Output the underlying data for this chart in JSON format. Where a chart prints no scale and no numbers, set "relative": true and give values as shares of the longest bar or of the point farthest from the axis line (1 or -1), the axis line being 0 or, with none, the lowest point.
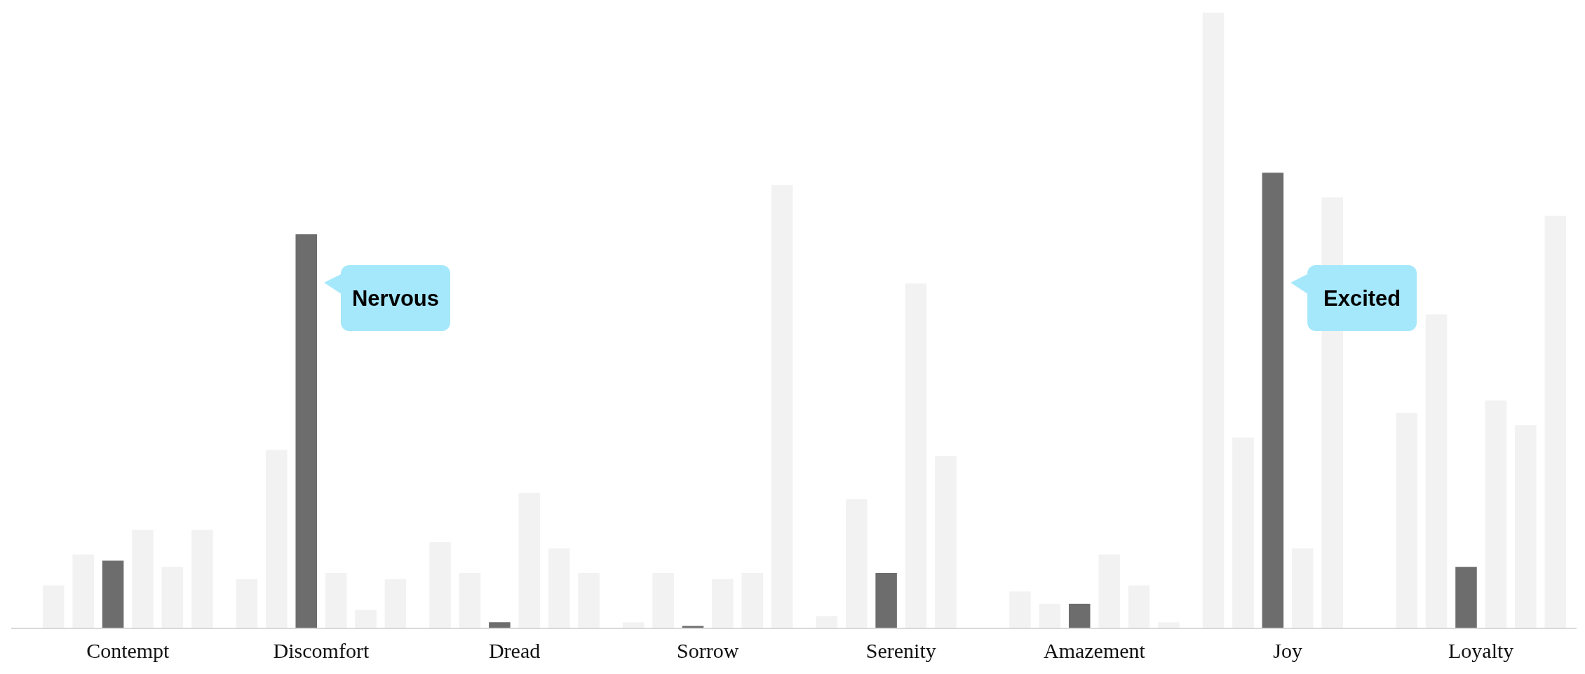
{
  "chart_data": {
    "type": "bar",
    "relative": true,
    "categories": [
      "Contempt",
      "Discomfort",
      "Dread",
      "Sorrow",
      "Serenity",
      "Amazement",
      "Joy",
      "Loyalty"
    ],
    "series": [
      {
        "color": "#f2f2f2",
        "values": [
          0.07,
          0.08,
          0.14,
          0.01,
          0.02,
          0.06,
          1,
          0.35
        ]
      },
      {
        "color": "#f2f2f2",
        "values": [
          0.12,
          0.29,
          0.09,
          0.09,
          0.21,
          0.04,
          0.31,
          0.51
        ]
      },
      {
        "color": "#6d6d6d",
        "values": [
          0.11,
          0.64,
          0.01,
          0.004,
          0.09,
          0.04,
          0.74,
          0.1
        ]
      },
      {
        "color": "#f2f2f2",
        "values": [
          0.16,
          0.09,
          0.22,
          0.08,
          0.56,
          0.12,
          0.13,
          0.37
        ]
      },
      {
        "color": "#f2f2f2",
        "values": [
          0.1,
          0.03,
          0.13,
          0.09,
          0.28,
          0.07,
          0.7,
          0.33
        ]
      },
      {
        "color": "#f2f2f2",
        "values": [
          0.16,
          0.08,
          0.09,
          0.72,
          0,
          0.01,
          0,
          0.67
        ]
      }
    ],
    "annotations": [
      "Nervous",
      "Excited"
    ]
  }
}
